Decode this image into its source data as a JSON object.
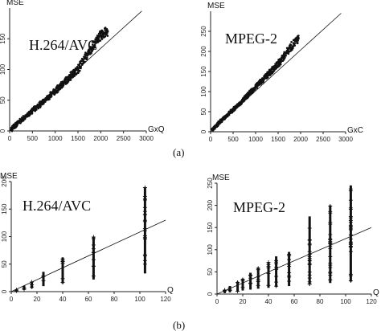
{
  "captions": {
    "a": "(a)",
    "b": "(b)"
  },
  "chart_data": [
    {
      "type": "scatter",
      "id": "a-h264",
      "title": "H.264/AVC",
      "xlabel": "GxQ",
      "ylabel": "MSE",
      "xlim": [
        0,
        3000
      ],
      "ylim": [
        0,
        200
      ],
      "xticks": [
        0,
        500,
        1000,
        1500,
        2000,
        2500,
        3000
      ],
      "yticks": [
        0,
        50,
        100,
        150
      ],
      "fit_line": {
        "x": [
          0,
          2900
        ],
        "y": [
          0,
          195
        ]
      },
      "series": [
        {
          "x": [
            40,
            80,
            120,
            200,
            300,
            420,
            520,
            650,
            780,
            900,
            1000,
            1100,
            1200,
            1300,
            1400,
            1500,
            1650,
            1800,
            1950,
            2050,
            2150
          ],
          "y": [
            3,
            6,
            9,
            14,
            20,
            27,
            34,
            42,
            50,
            58,
            65,
            72,
            79,
            86,
            94,
            100,
            118,
            135,
            152,
            158,
            162
          ]
        }
      ]
    },
    {
      "type": "scatter",
      "id": "a-mpeg2",
      "title": "MPEG-2",
      "xlabel": "GxC",
      "ylabel": "MSE",
      "xlim": [
        0,
        3000
      ],
      "ylim": [
        0,
        300
      ],
      "xticks": [
        0,
        500,
        1000,
        1500,
        2000,
        2500,
        3000
      ],
      "yticks": [
        0,
        50,
        100,
        150,
        200,
        250
      ],
      "fit_line": {
        "x": [
          0,
          2900
        ],
        "y": [
          0,
          295
        ]
      },
      "series": [
        {
          "x": [
            40,
            100,
            180,
            260,
            350,
            450,
            550,
            650,
            750,
            850,
            950,
            1050,
            1150,
            1250,
            1350,
            1450,
            1550,
            1700,
            1850,
            1950
          ],
          "y": [
            5,
            12,
            22,
            30,
            40,
            50,
            60,
            70,
            82,
            95,
            105,
            118,
            128,
            140,
            150,
            163,
            175,
            200,
            220,
            232
          ]
        }
      ]
    },
    {
      "type": "scatter",
      "id": "b-h264",
      "title": "H.264/AVC",
      "xlabel": "Q",
      "ylabel": "MSE",
      "xlim": [
        0,
        120
      ],
      "ylim": [
        0,
        200
      ],
      "xticks": [
        0,
        20,
        40,
        60,
        80,
        100,
        120
      ],
      "yticks": [
        0,
        50,
        100,
        150,
        200
      ],
      "fit_line": {
        "x": [
          0,
          120
        ],
        "y": [
          0,
          130
        ]
      },
      "series": [
        {
          "name": "",
          "columns": [
            {
              "q": 4,
              "min": 1,
              "max": 4
            },
            {
              "q": 10,
              "min": 3,
              "max": 11
            },
            {
              "q": 16,
              "min": 6,
              "max": 18
            },
            {
              "q": 25,
              "min": 10,
              "max": 36
            },
            {
              "q": 40,
              "min": 15,
              "max": 62
            },
            {
              "q": 64,
              "min": 22,
              "max": 100
            },
            {
              "q": 104,
              "min": 33,
              "max": 190
            }
          ]
        }
      ]
    },
    {
      "type": "scatter",
      "id": "b-mpeg2",
      "title": "MPEG-2",
      "xlabel": "Q",
      "ylabel": "MSE",
      "xlim": [
        0,
        120
      ],
      "ylim": [
        0,
        250
      ],
      "xticks": [
        0,
        20,
        40,
        60,
        80,
        100,
        120
      ],
      "yticks": [
        0,
        50,
        100,
        150,
        200,
        250
      ],
      "fit_line": {
        "x": [
          0,
          120
        ],
        "y": [
          0,
          150
        ]
      },
      "series": [
        {
          "name": "",
          "columns": [
            {
              "q": 6,
              "min": 2,
              "max": 10
            },
            {
              "q": 10,
              "min": 4,
              "max": 18
            },
            {
              "q": 16,
              "min": 6,
              "max": 28
            },
            {
              "q": 20,
              "min": 8,
              "max": 35
            },
            {
              "q": 26,
              "min": 10,
              "max": 48
            },
            {
              "q": 32,
              "min": 12,
              "max": 60
            },
            {
              "q": 40,
              "min": 14,
              "max": 72
            },
            {
              "q": 46,
              "min": 16,
              "max": 85
            },
            {
              "q": 56,
              "min": 18,
              "max": 95
            },
            {
              "q": 72,
              "min": 22,
              "max": 175
            },
            {
              "q": 88,
              "min": 25,
              "max": 200
            },
            {
              "q": 104,
              "min": 28,
              "max": 245
            }
          ]
        }
      ]
    }
  ]
}
